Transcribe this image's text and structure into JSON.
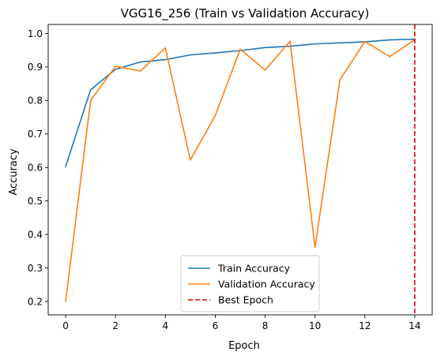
{
  "chart_data": {
    "type": "line",
    "title": "VGG16_256 (Train vs Validation Accuracy)",
    "xlabel": "Epoch",
    "ylabel": "Accuracy",
    "xlim": [
      -0.7,
      14.7
    ],
    "ylim": [
      0.16,
      1.027
    ],
    "x_ticks": [
      "0",
      "2",
      "4",
      "6",
      "8",
      "10",
      "12",
      "14"
    ],
    "y_ticks": [
      "0.2",
      "0.3",
      "0.4",
      "0.5",
      "0.6",
      "0.7",
      "0.8",
      "0.9",
      "1.0"
    ],
    "x": [
      0,
      1,
      2,
      3,
      4,
      5,
      6,
      7,
      8,
      9,
      10,
      11,
      12,
      13,
      14
    ],
    "series": [
      {
        "name": "Train Accuracy",
        "color": "#1f77b4",
        "values": [
          0.603,
          0.832,
          0.893,
          0.915,
          0.922,
          0.936,
          0.942,
          0.949,
          0.958,
          0.962,
          0.969,
          0.972,
          0.975,
          0.981,
          0.983
        ]
      },
      {
        "name": "Validation Accuracy",
        "color": "#ff7f0e",
        "values": [
          0.2,
          0.8,
          0.902,
          0.888,
          0.957,
          0.622,
          0.755,
          0.953,
          0.891,
          0.977,
          0.362,
          0.862,
          0.976,
          0.931,
          0.981
        ]
      }
    ],
    "vline": {
      "name": "Best Epoch",
      "x": 14,
      "color": "#e00000",
      "style": "dashed"
    },
    "legend_position": "lower center",
    "grid": false
  }
}
